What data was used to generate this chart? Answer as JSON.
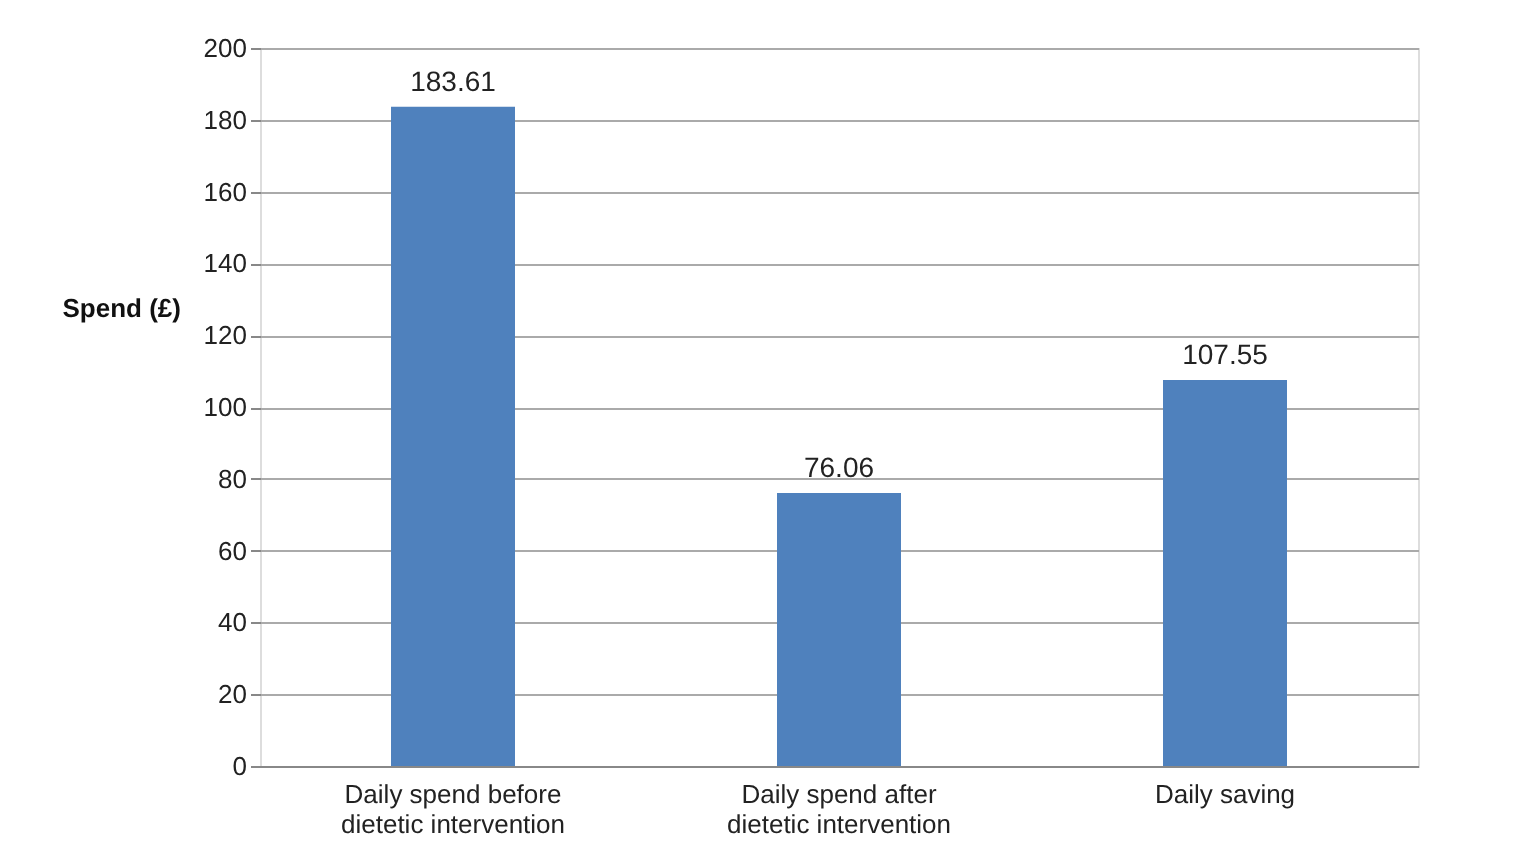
{
  "chart_data": {
    "type": "bar",
    "ylabel": "Spend (£)",
    "categories": [
      "Daily spend before dietetic intervention",
      "Daily spend after dietetic intervention",
      "Daily saving"
    ],
    "values": [
      183.61,
      76.06,
      107.55
    ],
    "color": "#4f81bd",
    "ylim": [
      0,
      200
    ],
    "yticks": [
      0,
      20,
      40,
      60,
      80,
      100,
      120,
      140,
      160,
      180,
      200
    ],
    "grid": "y",
    "data_labels": true
  }
}
